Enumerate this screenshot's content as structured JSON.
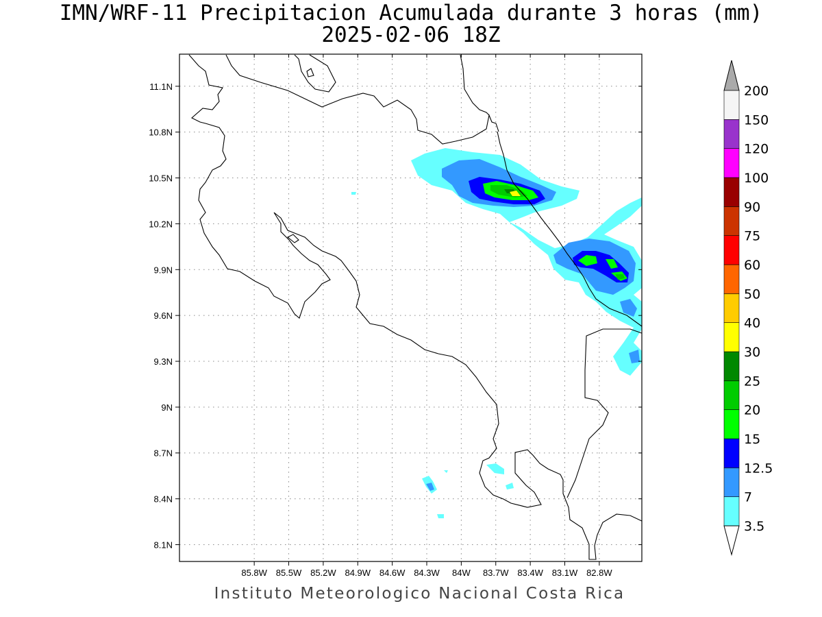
{
  "title": {
    "line1": "IMN/WRF-11 Precipitacion Acumulada durante 3 horas (mm)",
    "line2": "2025-02-06 18Z"
  },
  "credit": "Instituto Meteorologico Nacional Costa Rica",
  "map": {
    "lon_range": [
      -86.45,
      -82.43
    ],
    "lat_range": [
      7.99,
      11.31
    ],
    "lon_ticks": [
      {
        "value": -85.8,
        "label": "85.8W"
      },
      {
        "value": -85.5,
        "label": "85.5W"
      },
      {
        "value": -85.2,
        "label": "85.2W"
      },
      {
        "value": -84.9,
        "label": "84.9W"
      },
      {
        "value": -84.6,
        "label": "84.6W"
      },
      {
        "value": -84.3,
        "label": "84.3W"
      },
      {
        "value": -84.0,
        "label": "84W"
      },
      {
        "value": -83.7,
        "label": "83.7W"
      },
      {
        "value": -83.4,
        "label": "83.4W"
      },
      {
        "value": -83.1,
        "label": "83.1W"
      },
      {
        "value": -82.8,
        "label": "82.8W"
      }
    ],
    "lat_ticks": [
      {
        "value": 11.1,
        "label": "11.1N"
      },
      {
        "value": 10.8,
        "label": "10.8N"
      },
      {
        "value": 10.5,
        "label": "10.5N"
      },
      {
        "value": 10.2,
        "label": "10.2N"
      },
      {
        "value": 9.9,
        "label": "9.9N"
      },
      {
        "value": 9.6,
        "label": "9.6N"
      },
      {
        "value": 9.3,
        "label": "9.3N"
      },
      {
        "value": 9.0,
        "label": "9N"
      },
      {
        "value": 8.7,
        "label": "8.7N"
      },
      {
        "value": 8.4,
        "label": "8.4N"
      },
      {
        "value": 8.1,
        "label": "8.1N"
      }
    ],
    "grid": "dotted"
  },
  "colorbar": {
    "labels": [
      "3.5",
      "7",
      "12.5",
      "15",
      "20",
      "25",
      "30",
      "40",
      "50",
      "60",
      "75",
      "90",
      "100",
      "120",
      "150",
      "200"
    ],
    "colors": [
      "#66ffff",
      "#3399ff",
      "#0000ff",
      "#00ff00",
      "#00cc00",
      "#008800",
      "#ffff00",
      "#ffcc00",
      "#ff6600",
      "#ff0000",
      "#cc3300",
      "#990000",
      "#ff00ff",
      "#9933cc",
      "#f5f5f5",
      "#aaaaaa"
    ],
    "under_color": "#ffffff",
    "over_color": "#aaaaaa"
  }
}
